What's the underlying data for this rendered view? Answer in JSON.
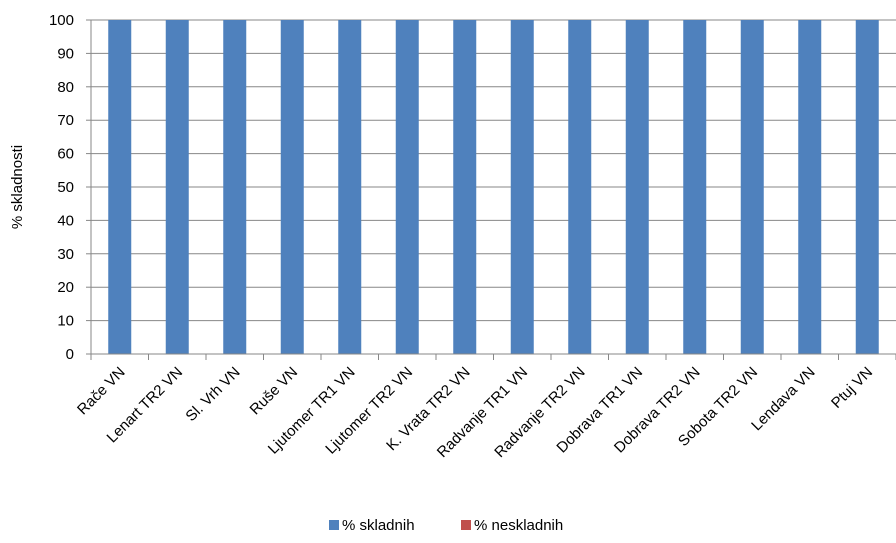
{
  "chart_data": {
    "type": "bar",
    "stacked": true,
    "title": "",
    "xlabel": "",
    "ylabel": "% skladnosti",
    "ylim": [
      0,
      100
    ],
    "yticks": [
      0,
      10,
      20,
      30,
      40,
      50,
      60,
      70,
      80,
      90,
      100
    ],
    "grid": true,
    "legend_position": "bottom",
    "categories": [
      "Rače VN",
      "Lenart TR2 VN",
      "Sl. Vrh VN",
      "Ruše VN",
      "Ljutomer TR1 VN",
      "Ljutomer TR2 VN",
      "K. Vrata TR2 VN",
      "Radvanje TR1 VN",
      "Radvanje TR2 VN",
      "Dobrava TR1 VN",
      "Dobrava TR2 VN",
      "Sobota TR2 VN",
      "Lendava VN",
      "Ptuj VN"
    ],
    "series": [
      {
        "name": "% skladnih",
        "color": "#4f81bd",
        "values": [
          100,
          100,
          100,
          100,
          100,
          100,
          100,
          100,
          100,
          100,
          100,
          100,
          100,
          100
        ]
      },
      {
        "name": "% neskladnih",
        "color": "#c0504d",
        "values": [
          0,
          0,
          0,
          0,
          0,
          0,
          0,
          0,
          0,
          0,
          0,
          0,
          0,
          0
        ]
      }
    ]
  }
}
